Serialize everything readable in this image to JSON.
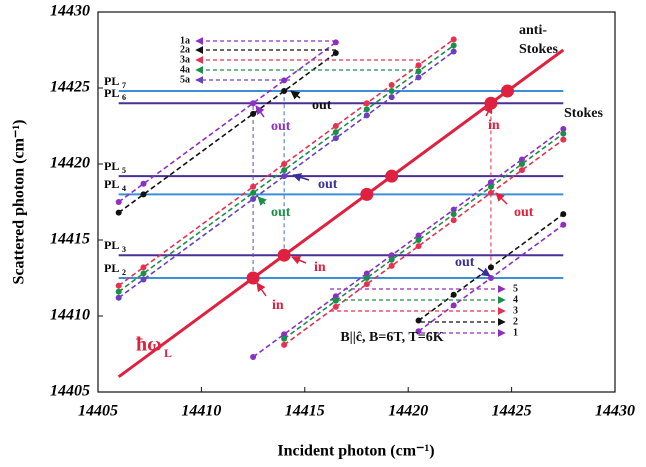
{
  "chart_data": {
    "type": "line",
    "xlabel": "Incident photon (cm⁻¹)",
    "ylabel": "Scattered photon (cm⁻¹)",
    "xlim": [
      14405,
      14430
    ],
    "ylim": [
      14405,
      14430
    ],
    "xticks": [
      14405,
      14410,
      14415,
      14420,
      14425,
      14430
    ],
    "yticks": [
      14405,
      14410,
      14415,
      14420,
      14425,
      14430
    ],
    "laser": {
      "label": "ħω",
      "sub": "L",
      "color": "#e0203f",
      "x": [
        14406,
        14427.5
      ],
      "values": [
        14406,
        14427.5
      ]
    },
    "resonances": {
      "color": "#e0203f",
      "x": [
        14412.5,
        14414,
        14418,
        14419.2,
        14424,
        14424.8
      ],
      "values": [
        14412.5,
        14414,
        14418,
        14419.2,
        14424,
        14424.8
      ]
    },
    "pl_lines": [
      {
        "label": "PL",
        "sub": "2",
        "value": 14412.5,
        "color": "#3b8fd9"
      },
      {
        "label": "PL",
        "sub": "3",
        "value": 14414,
        "color": "#4a2f96"
      },
      {
        "label": "PL",
        "sub": "4",
        "value": 14418,
        "color": "#3b8fd9"
      },
      {
        "label": "PL",
        "sub": "5",
        "value": 14419.2,
        "color": "#4a2f96"
      },
      {
        "label": "PL",
        "sub": "6",
        "value": 14424,
        "color": "#4a2f96"
      },
      {
        "label": "PL",
        "sub": "7",
        "value": 14424.8,
        "color": "#3b8fd9"
      }
    ],
    "connectors": [
      {
        "x": 14412.5,
        "y": [
          14412.5,
          14424
        ],
        "color": "#5a4fc0"
      },
      {
        "x": 14414,
        "y": [
          14414,
          14424.8
        ],
        "color": "#3f6fd8"
      },
      {
        "x": 14424,
        "y": [
          14413.2,
          14424
        ],
        "color": "#e0304a"
      }
    ],
    "series": [
      {
        "name": "1a",
        "color": "#8e2fc4",
        "x": [
          14406,
          14407.2,
          14412.5,
          14414,
          14416.5
        ],
        "values": [
          14417.5,
          14418.7,
          14424,
          14425.5,
          14428
        ]
      },
      {
        "name": "2a",
        "color": "#111111",
        "x": [
          14406,
          14407.2,
          14412.5,
          14414,
          14416.5
        ],
        "values": [
          14416.8,
          14418,
          14423.3,
          14424.8,
          14427.3
        ]
      },
      {
        "name": "3a",
        "color": "#e8304f",
        "x": [
          14406,
          14407.2,
          14412.5,
          14414,
          14416.5,
          14418,
          14419.2,
          14420.5,
          14422.2
        ],
        "values": [
          14412,
          14413.2,
          14418.5,
          14420,
          14422.5,
          14424,
          14425.2,
          14426.5,
          14428.2
        ]
      },
      {
        "name": "4a",
        "color": "#1a8f4a",
        "x": [
          14406,
          14407.2,
          14412.5,
          14414,
          14416.5,
          14418,
          14419.2,
          14420.5,
          14422.2
        ],
        "values": [
          14411.6,
          14412.8,
          14418.1,
          14419.6,
          14422.1,
          14423.6,
          14424.8,
          14426.1,
          14427.8
        ]
      },
      {
        "name": "5a",
        "color": "#6a3fc0",
        "x": [
          14406,
          14407.2,
          14412.5,
          14414,
          14416.5,
          14418,
          14419.2,
          14420.5,
          14422.2
        ],
        "values": [
          14411.2,
          14412.4,
          14417.7,
          14419.2,
          14421.7,
          14423.2,
          14424.4,
          14425.7,
          14427.4
        ]
      },
      {
        "name": "5",
        "color": "#8e2fc4",
        "x": [
          14412.5,
          14414,
          14416.5,
          14418,
          14419.2,
          14420.5,
          14422.2,
          14424,
          14425.5,
          14427.5
        ],
        "values": [
          14407.3,
          14408.8,
          14411.3,
          14412.8,
          14414,
          14415.3,
          14417,
          14418.8,
          14420.3,
          14422.3
        ]
      },
      {
        "name": "4",
        "color": "#1a8f4a",
        "x": [
          14414,
          14416.5,
          14418,
          14419.2,
          14420.5,
          14422.2,
          14424,
          14425.5,
          14427.5
        ],
        "values": [
          14408.5,
          14411,
          14412.5,
          14413.7,
          14415,
          14416.7,
          14418.5,
          14420,
          14422
        ]
      },
      {
        "name": "3",
        "color": "#e8304f",
        "x": [
          14414,
          14416.5,
          14418,
          14419.2,
          14420.5,
          14422.2,
          14424,
          14425.5,
          14427.5
        ],
        "values": [
          14408.1,
          14410.6,
          14412.1,
          14413.3,
          14414.6,
          14416.3,
          14418.1,
          14419.6,
          14421.6
        ]
      },
      {
        "name": "2",
        "color": "#111111",
        "x": [
          14420.5,
          14422.2,
          14424,
          14427.5
        ],
        "values": [
          14409.7,
          14411.4,
          14413.2,
          14416.7
        ]
      },
      {
        "name": "1",
        "color": "#8e2fc4",
        "x": [
          14420.5,
          14422.2,
          14424,
          14427.5
        ],
        "values": [
          14409,
          14410.7,
          14412.5,
          14416
        ]
      }
    ],
    "annotations": [
      {
        "text": "in",
        "color": "#e0203f"
      },
      {
        "text": "in",
        "color": "#e0203f"
      },
      {
        "text": "in",
        "color": "#e0203f"
      },
      {
        "text": "out",
        "color": "#8e2fc4"
      },
      {
        "text": "out",
        "color": "#111111"
      },
      {
        "text": "out",
        "color": "#3a2f96"
      },
      {
        "text": "out",
        "color": "#1a8f4a"
      },
      {
        "text": "out",
        "color": "#e0203f"
      },
      {
        "text": "out",
        "color": "#3a2f96"
      },
      {
        "text": "anti-",
        "color": "#111111"
      },
      {
        "text": "Stokes",
        "color": "#111111"
      },
      {
        "text": "Stokes",
        "color": "#111111"
      },
      {
        "text": "B||ĉ, B=6T, T=6K",
        "color": "#111111"
      }
    ]
  }
}
